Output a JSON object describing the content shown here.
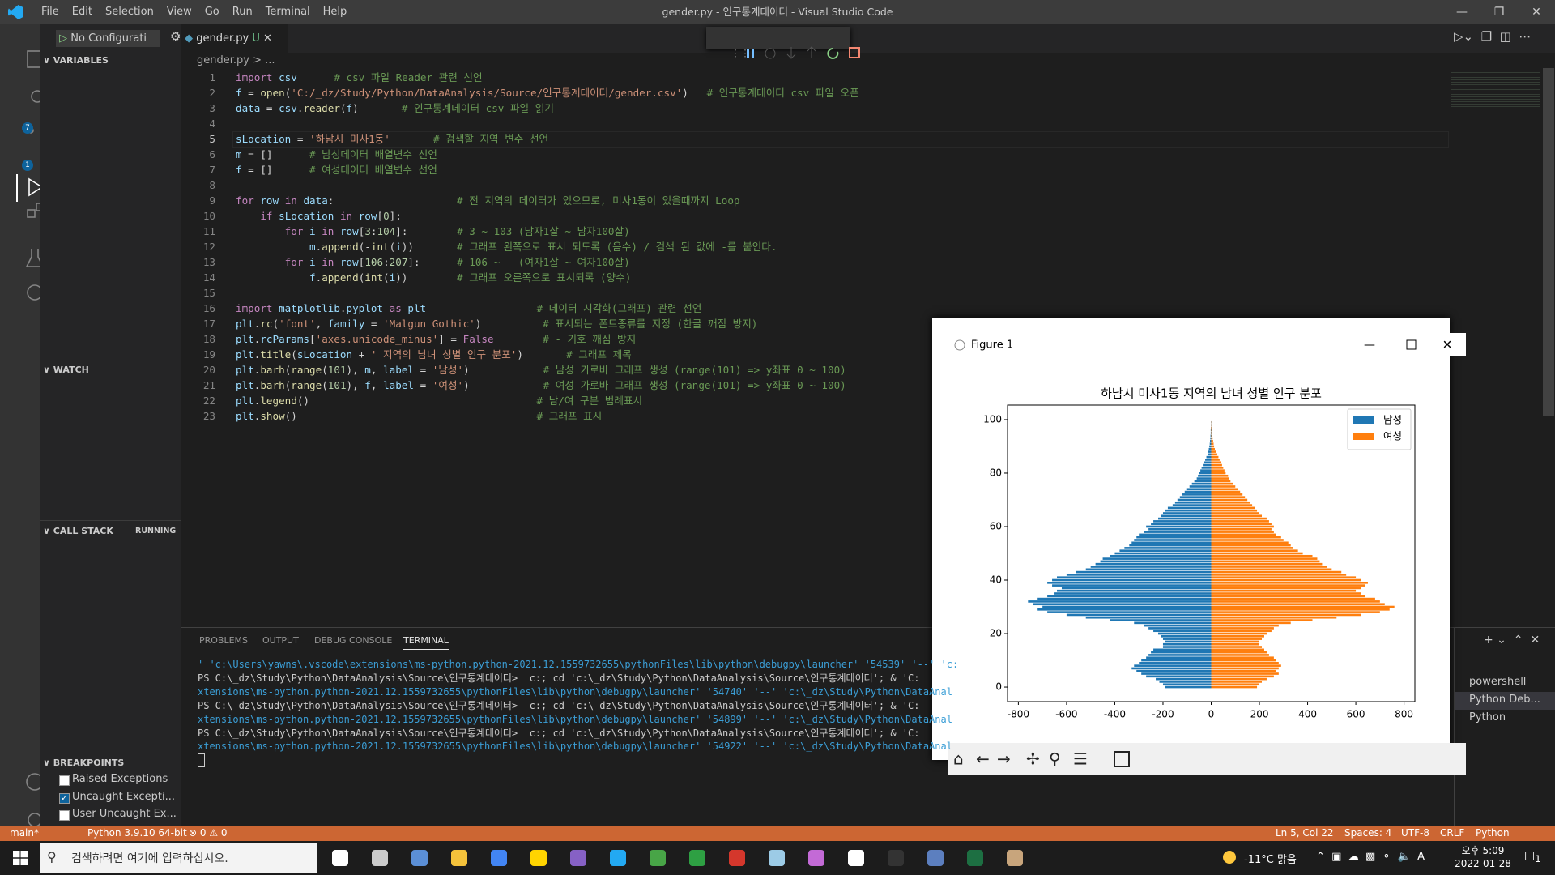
{
  "window": {
    "title": "gender.py - 인구통계데이터 - Visual Studio Code",
    "menu": [
      "File",
      "Edit",
      "Selection",
      "View",
      "Go",
      "Run",
      "Terminal",
      "Help"
    ]
  },
  "activity_badges": [
    "7",
    "1"
  ],
  "sidebar": {
    "run_config": "No Configurati",
    "sections": {
      "variables": "VARIABLES",
      "watch": "WATCH",
      "call_stack": "CALL STACK",
      "call_stack_state": "RUNNING",
      "breakpoints": "BREAKPOINTS"
    },
    "breakpoints": [
      {
        "label": "Raised Exceptions",
        "checked": false
      },
      {
        "label": "Uncaught Excepti...",
        "checked": true
      },
      {
        "label": "User Uncaught Ex...",
        "checked": false
      }
    ]
  },
  "editor": {
    "tab": "gender.py",
    "tab_status": "U",
    "breadcrumb": "gender.py > ...",
    "lines": [
      {
        "n": 1,
        "text": "import csv      # csv 파일 Reader 관련 선언"
      },
      {
        "n": 2,
        "text": "f = open('C:/_dz/Study/Python/DataAnalysis/Source/인구통계데이터/gender.csv')   # 인구통계데이터 csv 파일 오픈"
      },
      {
        "n": 3,
        "text": "data = csv.reader(f)       # 인구통계데이터 csv 파일 읽기"
      },
      {
        "n": 4
      },
      {
        "n": 5,
        "text": "sLocation = '하남시 미사1동'       # 검색할 지역 변수 선언"
      },
      {
        "n": 6,
        "text": "m = []      # 남성데이터 배열변수 선언"
      },
      {
        "n": 7,
        "text": "f = []      # 여성데이터 배열변수 선언"
      },
      {
        "n": 8
      },
      {
        "n": 9,
        "text": "for row in data:                    # 전 지역의 데이터가 있으므로, 미사1동이 있을때까지 Loop"
      },
      {
        "n": 10,
        "text": "    if sLocation in row[0]:"
      },
      {
        "n": 11,
        "text": "        for i in row[3:104]:        # 3 ~ 103 (남자1살 ~ 남자100살)"
      },
      {
        "n": 12,
        "text": "            m.append(-int(i))       # 그래프 왼쪽으로 표시 되도록 (음수) / 검색 된 값에 -를 붙인다."
      },
      {
        "n": 13,
        "text": "        for i in row[106:207]:      # 106 ~   (여자1살 ~ 여자100살)"
      },
      {
        "n": 14,
        "text": "            f.append(int(i))        # 그래프 오른쪽으로 표시되록 (양수)"
      },
      {
        "n": 15
      },
      {
        "n": 16,
        "text": "import matplotlib.pyplot as plt                  # 데이터 시각화(그래프) 관련 선언"
      },
      {
        "n": 17,
        "text": "plt.rc('font', family = 'Malgun Gothic')          # 표시되는 폰트종류를 지정 (한글 깨짐 방지)"
      },
      {
        "n": 18,
        "text": "plt.rcParams['axes.unicode_minus'] = False        # - 기호 깨짐 방지"
      },
      {
        "n": 19,
        "text": "plt.title(sLocation + ' 지역의 남녀 성별 인구 분포')       # 그래프 제목"
      },
      {
        "n": 20,
        "text": "plt.barh(range(101), m, label = '남성')            # 남성 가로바 그래프 생성 (range(101) => y좌표 0 ~ 100)"
      },
      {
        "n": 21,
        "text": "plt.barh(range(101), f, label = '여성')            # 여성 가로바 그래프 생성 (range(101) => y좌표 0 ~ 100)"
      },
      {
        "n": 22,
        "text": "plt.legend()                                     # 남/여 구분 범례표시"
      },
      {
        "n": 23,
        "text": "plt.show()                                       # 그래프 표시"
      }
    ]
  },
  "panel": {
    "tabs": [
      "PROBLEMS",
      "OUTPUT",
      "DEBUG CONSOLE",
      "TERMINAL"
    ],
    "active_tab": 3,
    "terminal_lines": [
      "' 'c:\\Users\\yawns\\.vscode\\extensions\\ms-python.python-2021.12.1559732655\\pythonFiles\\lib\\python\\debugpy\\launcher' '54539' '--' 'c:",
      "PS C:\\_dz\\Study\\Python\\DataAnalysis\\Source\\인구통계데이터>  c:; cd 'c:\\_dz\\Study\\Python\\DataAnalysis\\Source\\인구통계데이터'; & 'C:",
      "xtensions\\ms-python.python-2021.12.1559732655\\pythonFiles\\lib\\python\\debugpy\\launcher' '54740' '--' 'c:\\_dz\\Study\\Python\\DataAnal",
      "PS C:\\_dz\\Study\\Python\\DataAnalysis\\Source\\인구통계데이터>  c:; cd 'c:\\_dz\\Study\\Python\\DataAnalysis\\Source\\인구통계데이터'; & 'C:",
      "xtensions\\ms-python.python-2021.12.1559732655\\pythonFiles\\lib\\python\\debugpy\\launcher' '54899' '--' 'c:\\_dz\\Study\\Python\\DataAnal",
      "PS C:\\_dz\\Study\\Python\\DataAnalysis\\Source\\인구통계데이터>  c:; cd 'c:\\_dz\\Study\\Python\\DataAnalysis\\Source\\인구통계데이터'; & 'C:",
      "xtensions\\ms-python.python-2021.12.1559732655\\pythonFiles\\lib\\python\\debugpy\\launcher' '54922' '--' 'c:\\_dz\\Study\\Python\\DataAnal"
    ],
    "terminals": [
      "powershell",
      "Python Deb...",
      "Python"
    ]
  },
  "status_bar": {
    "branch": "main*",
    "python": "Python 3.9.10 64-bit",
    "problems": "⊗ 0 ⚠ 0",
    "cursor": "Ln 5, Col 22",
    "spaces": "Spaces: 4",
    "encoding": "UTF-8",
    "eol": "CRLF",
    "language": "Python"
  },
  "taskbar": {
    "search": "검색하려면 여기에 입력하십시오.",
    "weather": "-11°C 맑음",
    "time": "오후 5:09",
    "date": "2022-01-28",
    "notifications": "1"
  },
  "figure": {
    "window_title": "Figure 1"
  },
  "chart_data": {
    "type": "barh",
    "title": "하남시 미사1동 지역의 남녀 성별 인구 분포",
    "y": [
      0,
      1,
      2,
      3,
      4,
      5,
      6,
      7,
      8,
      9,
      10,
      11,
      12,
      13,
      14,
      15,
      16,
      17,
      18,
      19,
      20,
      21,
      22,
      23,
      24,
      25,
      26,
      27,
      28,
      29,
      30,
      31,
      32,
      33,
      34,
      35,
      36,
      37,
      38,
      39,
      40,
      41,
      42,
      43,
      44,
      45,
      46,
      47,
      48,
      49,
      50,
      51,
      52,
      53,
      54,
      55,
      56,
      57,
      58,
      59,
      60,
      61,
      62,
      63,
      64,
      65,
      66,
      67,
      68,
      69,
      70,
      71,
      72,
      73,
      74,
      75,
      76,
      77,
      78,
      79,
      80,
      81,
      82,
      83,
      84,
      85,
      86,
      87,
      88,
      89,
      90,
      91,
      92,
      93,
      94,
      95,
      96,
      97,
      98,
      99,
      100
    ],
    "series": [
      {
        "name": "남성",
        "color": "#1f77b4",
        "values": [
          -190,
          -200,
          -215,
          -230,
          -270,
          -290,
          -310,
          -330,
          -320,
          -300,
          -290,
          -270,
          -260,
          -250,
          -240,
          -200,
          -200,
          -190,
          -200,
          -210,
          -220,
          -240,
          -260,
          -280,
          -320,
          -420,
          -520,
          -600,
          -680,
          -720,
          -700,
          -740,
          -760,
          -720,
          -680,
          -650,
          -640,
          -620,
          -660,
          -680,
          -660,
          -640,
          -600,
          -560,
          -520,
          -500,
          -480,
          -460,
          -450,
          -420,
          -400,
          -380,
          -360,
          -340,
          -330,
          -320,
          -310,
          -300,
          -280,
          -260,
          -270,
          -250,
          -240,
          -220,
          -210,
          -200,
          -190,
          -180,
          -160,
          -150,
          -140,
          -130,
          -120,
          -110,
          -100,
          -90,
          -80,
          -70,
          -60,
          -55,
          -50,
          -45,
          -40,
          -35,
          -30,
          -25,
          -20,
          -15,
          -12,
          -10,
          -8,
          -6,
          -5,
          -4,
          -3,
          -2,
          -2,
          -1,
          -1,
          -1,
          0
        ]
      },
      {
        "name": "여성",
        "color": "#ff7f0e",
        "values": [
          190,
          200,
          210,
          230,
          260,
          280,
          270,
          280,
          290,
          280,
          270,
          260,
          240,
          230,
          220,
          210,
          200,
          200,
          210,
          220,
          230,
          250,
          260,
          280,
          330,
          420,
          520,
          620,
          700,
          740,
          760,
          720,
          700,
          680,
          640,
          620,
          600,
          620,
          640,
          650,
          620,
          600,
          560,
          540,
          500,
          480,
          460,
          450,
          440,
          420,
          380,
          360,
          340,
          330,
          320,
          300,
          290,
          270,
          260,
          250,
          260,
          250,
          240,
          230,
          210,
          200,
          190,
          180,
          170,
          160,
          150,
          140,
          130,
          120,
          110,
          100,
          90,
          80,
          75,
          70,
          60,
          55,
          50,
          45,
          40,
          35,
          30,
          25,
          20,
          15,
          12,
          10,
          8,
          6,
          5,
          4,
          3,
          2,
          1,
          1,
          0
        ]
      }
    ],
    "xlim": [
      -845,
      845
    ],
    "xticks": [
      -800,
      -600,
      -400,
      -200,
      0,
      200,
      400,
      600,
      800
    ],
    "ylim": [
      -5.44,
      105.44
    ],
    "yticks": [
      0,
      20,
      40,
      60,
      80,
      100
    ],
    "bar_height": 0.8,
    "legend": "upper right"
  }
}
